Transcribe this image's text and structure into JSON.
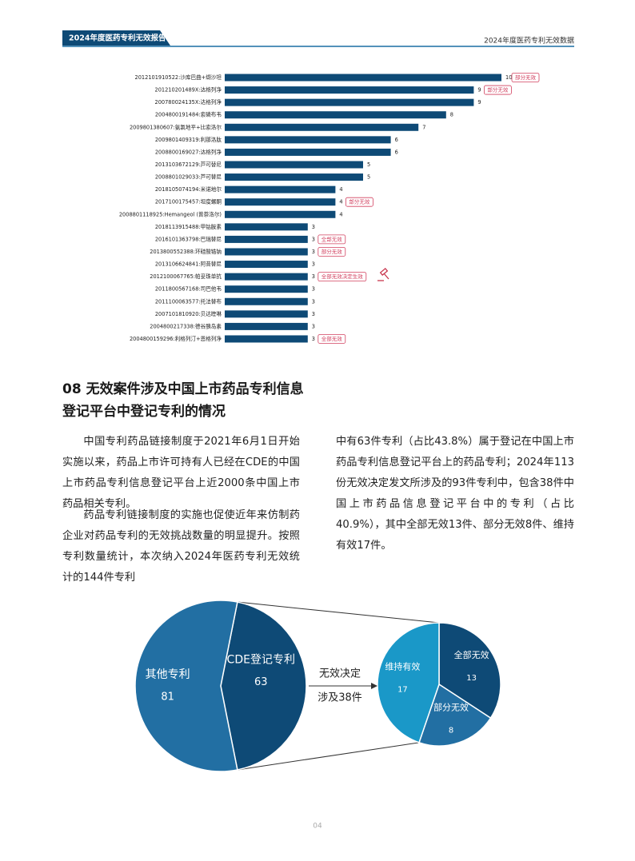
{
  "header": {
    "report_tab": "2024年度医药专利无效报告",
    "section_title": "2024年度医药专利无效数据"
  },
  "chart_data": [
    {
      "type": "bar",
      "orientation": "horizontal",
      "color": "#0e4a76",
      "categories": [
        "2012101910522:沙库巴曲+缬沙坦",
        "201210201489X:达格列净",
        "200780024135X:达格列净",
        "2004800191484:索磷布韦",
        "2009801380607:氨氯地平+比索洛尔",
        "2009801409319:利那洛肽",
        "2008800169027:达格列净",
        "2013103672129:芦可替尼",
        "2008801029033:芦可替尼",
        "2018105074194:米诺地尔",
        "2017100175457:坦度螺酮",
        "2008801118925:Hemangeol (普萘洛尔)",
        "2018113915488:甲钴胺素",
        "2016101363798:巴瑞替尼",
        "2013800552388:环硅酸锆钠",
        "2013106624841:阿昔替尼",
        "2012100067765:帕妥珠单抗",
        "2011800567168:司巴他韦",
        "2011100063577:托法替布",
        "2007101810920:贝达喹啉",
        "2004800217338:德谷胰岛素",
        "2004800159296:利格列汀+恩格列净"
      ],
      "values": [
        10,
        9,
        9,
        8,
        7,
        6,
        6,
        5,
        5,
        4,
        4,
        4,
        3,
        3,
        3,
        3,
        3,
        3,
        3,
        3,
        3,
        3
      ],
      "tags": [
        "部分无效",
        "部分无效",
        null,
        null,
        null,
        null,
        null,
        null,
        null,
        null,
        "部分无效",
        null,
        null,
        "全部无效",
        "部分无效",
        null,
        "全部无效决定生效",
        null,
        null,
        null,
        null,
        "全部无效"
      ],
      "tag_color": "#d2405f"
    },
    {
      "type": "pie-of-pie",
      "categories": [
        "其他专利",
        "CDE登记专利"
      ],
      "values": [
        81,
        63
      ],
      "colors": [
        "#226fa3",
        "#0e4a76"
      ],
      "breakdown": {
        "categories": [
          "全部无效",
          "部分无效",
          "维持有效"
        ],
        "values": [
          13,
          8,
          17
        ],
        "colors": [
          "#0e4a76",
          "#226fa3",
          "#1a98c8"
        ]
      },
      "connector_label": [
        "无效决定",
        "涉及38件"
      ]
    }
  ],
  "section": {
    "title_lines": [
      "08 无效案件涉及中国上市药品专利信息",
      "登记平台中登记专利的情况"
    ],
    "paragraphs": [
      "中国专利药品链接制度于2021年6月1日开始实施以来，药品上市许可持有人已经在CDE的中国上市药品专利信息登记平台上近2000条中国上市药品相关专利。",
      "药品专利链接制度的实施也促使近年来仿制药企业对药品专利的无效挑战数量的明显提升。按照专利数量统计，本次纳入2024年医药专利无效统计的144件专利",
      "中有63件专利（占比43.8%）属于登记在中国上市药品专利信息登记平台上的药品专利；2024年113份无效决定发文所涉及的93件专利中，包含38件中国上市药品信息登记平台中的专利（占比40.9%），其中全部无效13件、部分无效8件、维持有效17件。"
    ]
  },
  "page_number": "04"
}
